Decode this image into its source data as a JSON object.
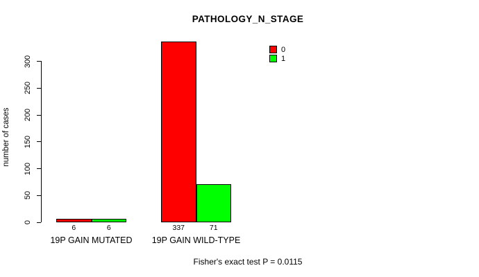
{
  "chart_data": {
    "type": "bar",
    "title": "PATHOLOGY_N_STAGE",
    "xlabel": "",
    "ylabel": "number of cases",
    "categories": [
      "19P GAIN MUTATED",
      "19P GAIN WILD-TYPE"
    ],
    "series": [
      {
        "name": "0",
        "color": "#FF0000",
        "values": [
          6,
          337
        ]
      },
      {
        "name": "1",
        "color": "#00FF00",
        "values": [
          6,
          71
        ]
      }
    ],
    "yticks": [
      0,
      50,
      100,
      150,
      200,
      250,
      300
    ],
    "ylim": [
      0,
      337
    ],
    "grid": false,
    "legend_position": "top-right",
    "footer": "Fisher's exact test P = 0.0115"
  }
}
